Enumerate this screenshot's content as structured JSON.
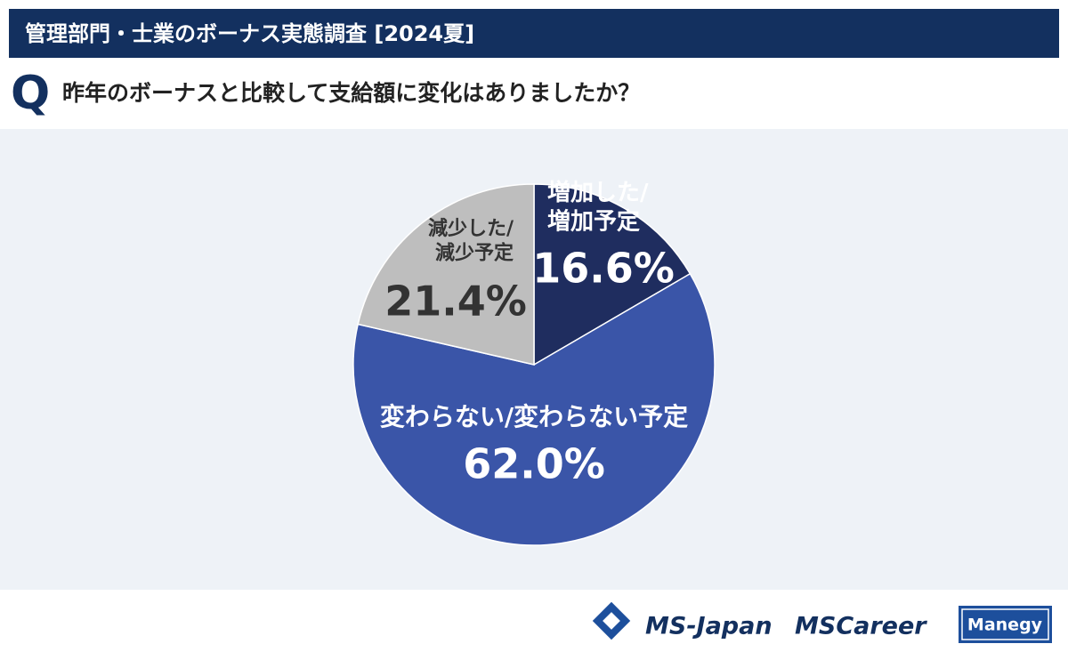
{
  "header": {
    "title": "管理部門・士業のボーナス実態調査 [2024夏]"
  },
  "question": {
    "mark": "Q",
    "text": "昨年のボーナスと比較して支給額に変化はありましたか？"
  },
  "chart_data": {
    "type": "pie",
    "categories": [
      "増加した/\n増加予定",
      "変わらない/変わらない予定",
      "減少した/\n減少予定"
    ],
    "values": [
      16.6,
      62.0,
      21.4
    ],
    "value_labels": [
      "16.6%",
      "62.0%",
      "21.4%"
    ],
    "colors": [
      "#1f2d5f",
      "#3a55a8",
      "#bebebe"
    ]
  },
  "footer": {
    "logos": [
      "MS-Japan",
      "MSCareer",
      "Manegy"
    ]
  }
}
